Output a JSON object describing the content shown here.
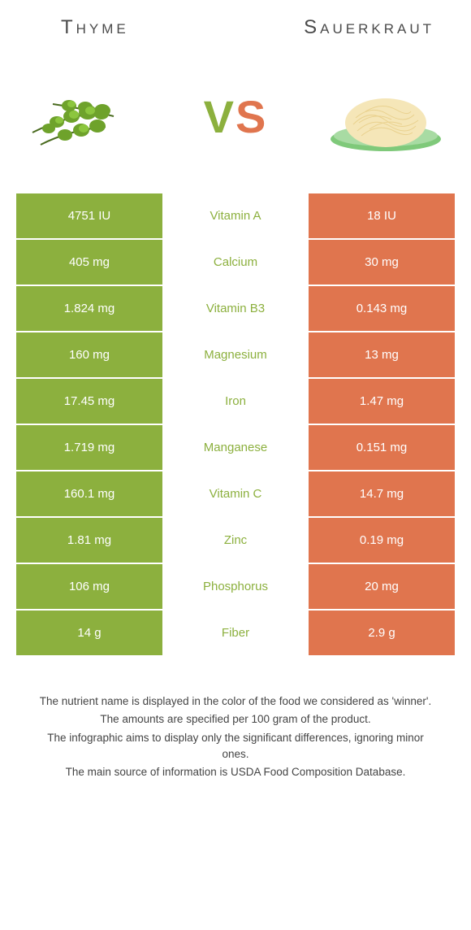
{
  "header": {
    "left_title": "Thyme",
    "right_title": "Sauerkraut"
  },
  "vs": {
    "v": "V",
    "s": "S"
  },
  "colors": {
    "left_bg": "#8cb03e",
    "right_bg": "#e0754e",
    "left_text": "#8cb03e",
    "right_text": "#e0754e",
    "row_border": "#ffffff"
  },
  "rows": [
    {
      "left": "4751 IU",
      "name": "Vitamin A",
      "right": "18 IU",
      "winner": "left"
    },
    {
      "left": "405 mg",
      "name": "Calcium",
      "right": "30 mg",
      "winner": "left"
    },
    {
      "left": "1.824 mg",
      "name": "Vitamin B3",
      "right": "0.143 mg",
      "winner": "left"
    },
    {
      "left": "160 mg",
      "name": "Magnesium",
      "right": "13 mg",
      "winner": "left"
    },
    {
      "left": "17.45 mg",
      "name": "Iron",
      "right": "1.47 mg",
      "winner": "left"
    },
    {
      "left": "1.719 mg",
      "name": "Manganese",
      "right": "0.151 mg",
      "winner": "left"
    },
    {
      "left": "160.1 mg",
      "name": "Vitamin C",
      "right": "14.7 mg",
      "winner": "left"
    },
    {
      "left": "1.81 mg",
      "name": "Zinc",
      "right": "0.19 mg",
      "winner": "left"
    },
    {
      "left": "106 mg",
      "name": "Phosphorus",
      "right": "20 mg",
      "winner": "left"
    },
    {
      "left": "14 g",
      "name": "Fiber",
      "right": "2.9 g",
      "winner": "left"
    }
  ],
  "footer": {
    "line1": "The nutrient name is displayed in the color of the food we considered as 'winner'.",
    "line2": "The amounts are specified per 100 gram of the product.",
    "line3": "The infographic aims to display only the significant differences, ignoring minor ones.",
    "line4": "The main source of information is USDA Food Composition Database."
  }
}
